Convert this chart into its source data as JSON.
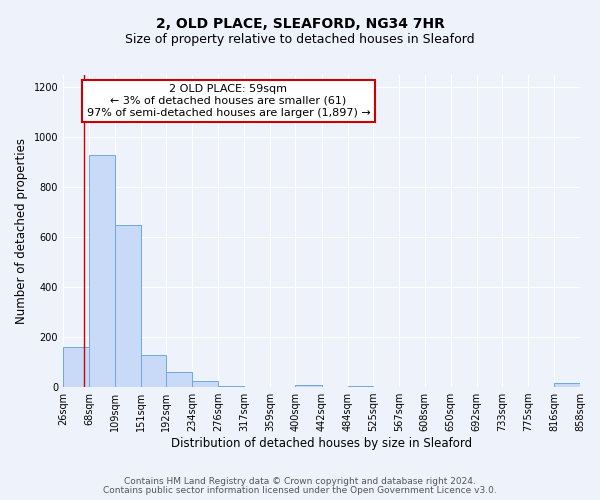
{
  "title": "2, OLD PLACE, SLEAFORD, NG34 7HR",
  "subtitle": "Size of property relative to detached houses in Sleaford",
  "xlabel": "Distribution of detached houses by size in Sleaford",
  "ylabel": "Number of detached properties",
  "bar_color": "#c9daf8",
  "bar_edge_color": "#6fa8dc",
  "bin_edges": [
    26,
    68,
    109,
    151,
    192,
    234,
    276,
    317,
    359,
    400,
    442,
    484,
    525,
    567,
    608,
    650,
    692,
    733,
    775,
    816,
    858
  ],
  "bar_heights": [
    160,
    930,
    650,
    130,
    60,
    25,
    5,
    0,
    0,
    10,
    0,
    5,
    0,
    0,
    0,
    0,
    0,
    0,
    0,
    15
  ],
  "tick_labels": [
    "26sqm",
    "68sqm",
    "109sqm",
    "151sqm",
    "192sqm",
    "234sqm",
    "276sqm",
    "317sqm",
    "359sqm",
    "400sqm",
    "442sqm",
    "484sqm",
    "525sqm",
    "567sqm",
    "608sqm",
    "650sqm",
    "692sqm",
    "733sqm",
    "775sqm",
    "816sqm",
    "858sqm"
  ],
  "ylim": [
    0,
    1250
  ],
  "yticks": [
    0,
    200,
    400,
    600,
    800,
    1000,
    1200
  ],
  "property_line_x": 59,
  "annotation_line1": "2 OLD PLACE: 59sqm",
  "annotation_line2": "← 3% of detached houses are smaller (61)",
  "annotation_line3": "97% of semi-detached houses are larger (1,897) →",
  "annotation_box_color": "#ffffff",
  "annotation_box_edge_color": "#cc0000",
  "vline_color": "#cc0000",
  "footer_line1": "Contains HM Land Registry data © Crown copyright and database right 2024.",
  "footer_line2": "Contains public sector information licensed under the Open Government Licence v3.0.",
  "background_color": "#eef2fa",
  "grid_color": "#ffffff",
  "title_fontsize": 10,
  "subtitle_fontsize": 9,
  "axis_label_fontsize": 8.5,
  "tick_fontsize": 7,
  "footer_fontsize": 6.5,
  "annotation_fontsize": 8
}
